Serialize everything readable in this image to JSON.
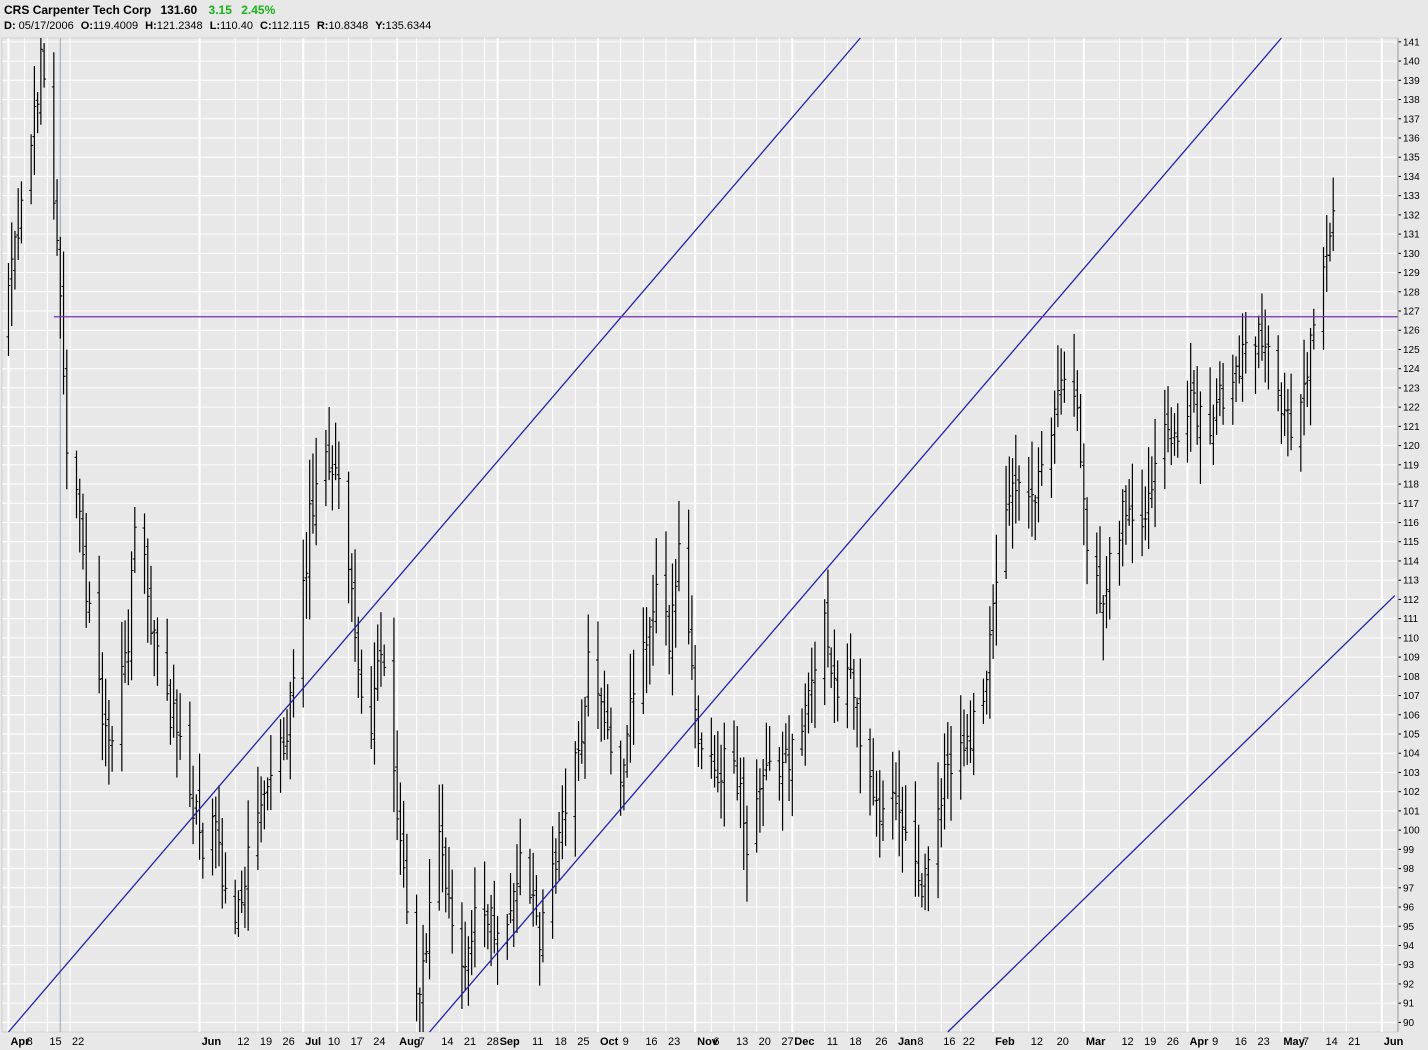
{
  "header": {
    "symbol": "CRS",
    "name": "Carpenter Tech Corp",
    "last": "131.60",
    "change": "3.15",
    "change_pct": "2.45%",
    "date_label": "D:",
    "date": "05/17/2006",
    "open_label": "O:",
    "open": "119.4009",
    "high_label": "H:",
    "high": "121.2348",
    "low_label": "L:",
    "low": "110.40",
    "close_label": "C:",
    "close": "112.115",
    "range_label": "R:",
    "range": "10.8348",
    "y_label": "Y:",
    "y": "135.6344"
  },
  "colors": {
    "background": "#e8e8e8",
    "grid": "#ffffff",
    "bars": "#000000",
    "trendlines": "#2323a8",
    "horizontal_line": "#7a2fb5",
    "cursor_line": "#9aa8b0",
    "change_positive": "#19b219"
  },
  "chart_data": {
    "type": "ohlc",
    "title": "CRS Carpenter Tech Corp",
    "ylim": [
      89.5,
      141.2
    ],
    "y_ticks": [
      90,
      91,
      92,
      93,
      94,
      95,
      96,
      97,
      98,
      99,
      100,
      101,
      102,
      103,
      104,
      105,
      106,
      107,
      108,
      109,
      110,
      111,
      112,
      113,
      114,
      115,
      116,
      117,
      118,
      119,
      120,
      121,
      122,
      123,
      124,
      125,
      126,
      127,
      128,
      129,
      130,
      131,
      132,
      133,
      134,
      135,
      136,
      137,
      138,
      139,
      140,
      141
    ],
    "x_range": [
      "2006-04-01",
      "2007-06-06"
    ],
    "x_ticks": [
      {
        "label": "Apr",
        "date": "2006-04-03",
        "major": true
      },
      {
        "label": "8",
        "date": "2006-04-08"
      },
      {
        "label": "15",
        "date": "2006-04-15"
      },
      {
        "label": "22",
        "date": "2006-04-22"
      },
      {
        "label": "Jun",
        "date": "2006-06-01",
        "major": true
      },
      {
        "label": "12",
        "date": "2006-06-12"
      },
      {
        "label": "19",
        "date": "2006-06-19"
      },
      {
        "label": "26",
        "date": "2006-06-26"
      },
      {
        "label": "Jul",
        "date": "2006-07-03",
        "major": true
      },
      {
        "label": "10",
        "date": "2006-07-10"
      },
      {
        "label": "17",
        "date": "2006-07-17"
      },
      {
        "label": "24",
        "date": "2006-07-24"
      },
      {
        "label": "Aug",
        "date": "2006-08-01",
        "major": true
      },
      {
        "label": "7",
        "date": "2006-08-07"
      },
      {
        "label": "14",
        "date": "2006-08-14"
      },
      {
        "label": "21",
        "date": "2006-08-21"
      },
      {
        "label": "28",
        "date": "2006-08-28"
      },
      {
        "label": "Sep",
        "date": "2006-09-01",
        "major": true
      },
      {
        "label": "11",
        "date": "2006-09-11"
      },
      {
        "label": "18",
        "date": "2006-09-18"
      },
      {
        "label": "25",
        "date": "2006-09-25"
      },
      {
        "label": "Oct",
        "date": "2006-10-02",
        "major": true
      },
      {
        "label": "9",
        "date": "2006-10-09"
      },
      {
        "label": "16",
        "date": "2006-10-16"
      },
      {
        "label": "23",
        "date": "2006-10-23"
      },
      {
        "label": "Nov",
        "date": "2006-11-01",
        "major": true
      },
      {
        "label": "6",
        "date": "2006-11-06"
      },
      {
        "label": "13",
        "date": "2006-11-13"
      },
      {
        "label": "20",
        "date": "2006-11-20"
      },
      {
        "label": "27",
        "date": "2006-11-27"
      },
      {
        "label": "Dec",
        "date": "2006-12-01",
        "major": true
      },
      {
        "label": "11",
        "date": "2006-12-11"
      },
      {
        "label": "18",
        "date": "2006-12-18"
      },
      {
        "label": "26",
        "date": "2006-12-26"
      },
      {
        "label": "Jan",
        "date": "2007-01-02",
        "major": true
      },
      {
        "label": "8",
        "date": "2007-01-08"
      },
      {
        "label": "16",
        "date": "2007-01-16"
      },
      {
        "label": "22",
        "date": "2007-01-22"
      },
      {
        "label": "Feb",
        "date": "2007-02-01",
        "major": true
      },
      {
        "label": "12",
        "date": "2007-02-12"
      },
      {
        "label": "20",
        "date": "2007-02-20"
      },
      {
        "label": "Mar",
        "date": "2007-03-01",
        "major": true
      },
      {
        "label": "12",
        "date": "2007-03-12"
      },
      {
        "label": "19",
        "date": "2007-03-19"
      },
      {
        "label": "26",
        "date": "2007-03-26"
      },
      {
        "label": "Apr",
        "date": "2007-04-02",
        "major": true
      },
      {
        "label": "9",
        "date": "2007-04-09"
      },
      {
        "label": "16",
        "date": "2007-04-16"
      },
      {
        "label": "23",
        "date": "2007-04-23"
      },
      {
        "label": "May",
        "date": "2007-05-01",
        "major": true
      },
      {
        "label": "7",
        "date": "2007-05-07"
      },
      {
        "label": "14",
        "date": "2007-05-14"
      },
      {
        "label": "21",
        "date": "2007-05-21"
      },
      {
        "label": "Jun",
        "date": "2007-06-01",
        "major": true
      }
    ],
    "price_path": [
      [
        "2006-04-01",
        126
      ],
      [
        "2006-04-08",
        133
      ],
      [
        "2006-04-13",
        140
      ],
      [
        "2006-04-16",
        136
      ],
      [
        "2006-04-18",
        131
      ],
      [
        "2006-04-21",
        120
      ],
      [
        "2006-04-25",
        116
      ],
      [
        "2006-04-30",
        108
      ],
      [
        "2006-05-04",
        104
      ],
      [
        "2006-05-10",
        110
      ],
      [
        "2006-05-13",
        118
      ],
      [
        "2006-05-16",
        112
      ],
      [
        "2006-05-20",
        108
      ],
      [
        "2006-05-27",
        104
      ],
      [
        "2006-06-02",
        99
      ],
      [
        "2006-06-06",
        100
      ],
      [
        "2006-06-10",
        95
      ],
      [
        "2006-06-14",
        97
      ],
      [
        "2006-06-20",
        101
      ],
      [
        "2006-06-26",
        104
      ],
      [
        "2006-07-01",
        108
      ],
      [
        "2006-07-05",
        116
      ],
      [
        "2006-07-10",
        119
      ],
      [
        "2006-07-14",
        119
      ],
      [
        "2006-07-18",
        112
      ],
      [
        "2006-07-22",
        104
      ],
      [
        "2006-07-27",
        109
      ],
      [
        "2006-07-31",
        103
      ],
      [
        "2006-08-04",
        96
      ],
      [
        "2006-08-07",
        91
      ],
      [
        "2006-08-10",
        94
      ],
      [
        "2006-08-14",
        99
      ],
      [
        "2006-08-18",
        95
      ],
      [
        "2006-08-22",
        93
      ],
      [
        "2006-08-26",
        97
      ],
      [
        "2006-08-30",
        95
      ],
      [
        "2006-09-05",
        96
      ],
      [
        "2006-09-09",
        99
      ],
      [
        "2006-09-14",
        94
      ],
      [
        "2006-09-18",
        98
      ],
      [
        "2006-09-22",
        101
      ],
      [
        "2006-09-26",
        104
      ],
      [
        "2006-09-30",
        110
      ],
      [
        "2006-10-04",
        106
      ],
      [
        "2006-10-08",
        102
      ],
      [
        "2006-10-12",
        106
      ],
      [
        "2006-10-16",
        109
      ],
      [
        "2006-10-20",
        112
      ],
      [
        "2006-10-24",
        110
      ],
      [
        "2006-10-28",
        116
      ],
      [
        "2006-11-01",
        106
      ],
      [
        "2006-11-05",
        104
      ],
      [
        "2006-11-09",
        103
      ],
      [
        "2006-11-13",
        104
      ],
      [
        "2006-11-17",
        99
      ],
      [
        "2006-11-21",
        102
      ],
      [
        "2006-11-25",
        103
      ],
      [
        "2006-11-29",
        104
      ],
      [
        "2006-12-03",
        104
      ],
      [
        "2006-12-07",
        108
      ],
      [
        "2006-12-11",
        111
      ],
      [
        "2006-12-15",
        107
      ],
      [
        "2006-12-19",
        108
      ],
      [
        "2006-12-23",
        104
      ],
      [
        "2006-12-27",
        101
      ],
      [
        "2007-01-01",
        102
      ],
      [
        "2007-01-05",
        99
      ],
      [
        "2007-01-09",
        97
      ],
      [
        "2007-01-13",
        98
      ],
      [
        "2007-01-17",
        103
      ],
      [
        "2007-01-21",
        104
      ],
      [
        "2007-01-25",
        105
      ],
      [
        "2007-01-29",
        107
      ],
      [
        "2007-02-02",
        113
      ],
      [
        "2007-02-06",
        117
      ],
      [
        "2007-02-10",
        118
      ],
      [
        "2007-02-14",
        117
      ],
      [
        "2007-02-18",
        120
      ],
      [
        "2007-02-22",
        124
      ],
      [
        "2007-02-26",
        123
      ],
      [
        "2007-03-02",
        115
      ],
      [
        "2007-03-06",
        112
      ],
      [
        "2007-03-10",
        115
      ],
      [
        "2007-03-14",
        117
      ],
      [
        "2007-03-18",
        116
      ],
      [
        "2007-03-22",
        118
      ],
      [
        "2007-03-26",
        121
      ],
      [
        "2007-03-30",
        121
      ],
      [
        "2007-04-03",
        122
      ],
      [
        "2007-04-07",
        121
      ],
      [
        "2007-04-11",
        122
      ],
      [
        "2007-04-15",
        123
      ],
      [
        "2007-04-19",
        125
      ],
      [
        "2007-04-23",
        126
      ],
      [
        "2007-04-27",
        126
      ],
      [
        "2007-05-01",
        122
      ],
      [
        "2007-05-05",
        120
      ],
      [
        "2007-05-09",
        124
      ],
      [
        "2007-05-13",
        128
      ],
      [
        "2007-05-17",
        131.6
      ]
    ],
    "trendlines": [
      {
        "x1": "2006-04-03",
        "y1": 89.5,
        "x2": "2006-12-22",
        "y2": 141.2
      },
      {
        "x1": "2006-08-11",
        "y1": 89.5,
        "x2": "2007-05-01",
        "y2": 141.2
      },
      {
        "x1": "2007-01-18",
        "y1": 89.5,
        "x2": "2007-06-05",
        "y2": 112.2
      }
    ],
    "horizontal_lines": [
      {
        "y": 126.7,
        "x_start": "2006-04-17"
      }
    ],
    "cursor_line": {
      "date": "2006-04-19"
    }
  }
}
